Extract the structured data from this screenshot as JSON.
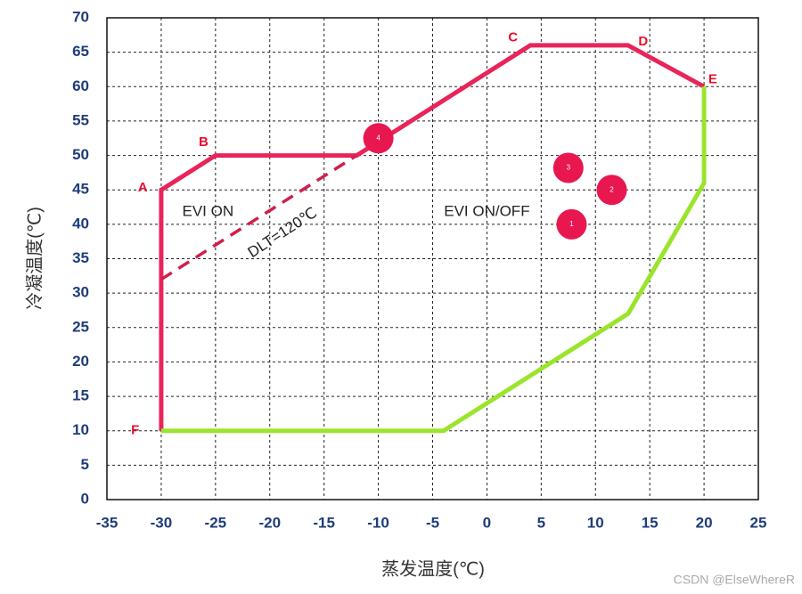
{
  "chart_data": {
    "type": "line",
    "xlabel": "蒸发温度(℃)",
    "ylabel": "冷凝温度(℃)",
    "xlim": [
      -35,
      25
    ],
    "ylim": [
      0,
      70
    ],
    "xticks": [
      -35,
      -30,
      -25,
      -20,
      -15,
      -10,
      -5,
      0,
      5,
      10,
      15,
      20,
      25
    ],
    "yticks": [
      0,
      5,
      10,
      15,
      20,
      25,
      30,
      35,
      40,
      45,
      50,
      55,
      60,
      65,
      70
    ],
    "grid": true,
    "series": [
      {
        "color": "#e8245a",
        "x": [
          -30,
          -30,
          -25,
          -12,
          4,
          13,
          20
        ],
        "values": [
          10,
          45,
          50,
          50,
          66,
          66,
          60
        ]
      },
      {
        "color": "#9be42c",
        "x": [
          20,
          20,
          13,
          -4,
          -30
        ],
        "values": [
          60,
          46,
          27,
          10,
          10
        ]
      },
      {
        "color": "#d01f4c",
        "dashed": true,
        "x": [
          -30,
          -12
        ],
        "values": [
          32,
          50
        ]
      }
    ],
    "markers": [
      {
        "label": "4",
        "x": -10,
        "y": 52.5
      },
      {
        "label": "3",
        "x": 7.5,
        "y": 48.2
      },
      {
        "label": "2",
        "x": 11.5,
        "y": 45
      },
      {
        "label": "1",
        "x": 7.8,
        "y": 40
      }
    ],
    "markers_color": "#e8174f",
    "annotations": [
      {
        "text": "A",
        "x": -31.7,
        "y": 45.3
      },
      {
        "text": "B",
        "x": -26.1,
        "y": 51.9
      },
      {
        "text": "C",
        "x": 2.4,
        "y": 67.1
      },
      {
        "text": "D",
        "x": 14.4,
        "y": 66.5
      },
      {
        "text": "E",
        "x": 20.8,
        "y": 61
      },
      {
        "text": "F",
        "x": -32.4,
        "y": 10
      },
      {
        "text": "EVI ON",
        "x": -25.7,
        "y": 41.8
      },
      {
        "text": "EVI ON/OFF",
        "x": 0,
        "y": 41.8
      },
      {
        "text": "DLT=120℃",
        "x": -18.8,
        "y": 38.7,
        "rotate": -33
      }
    ],
    "watermark": "CSDN @ElseWhereR"
  }
}
